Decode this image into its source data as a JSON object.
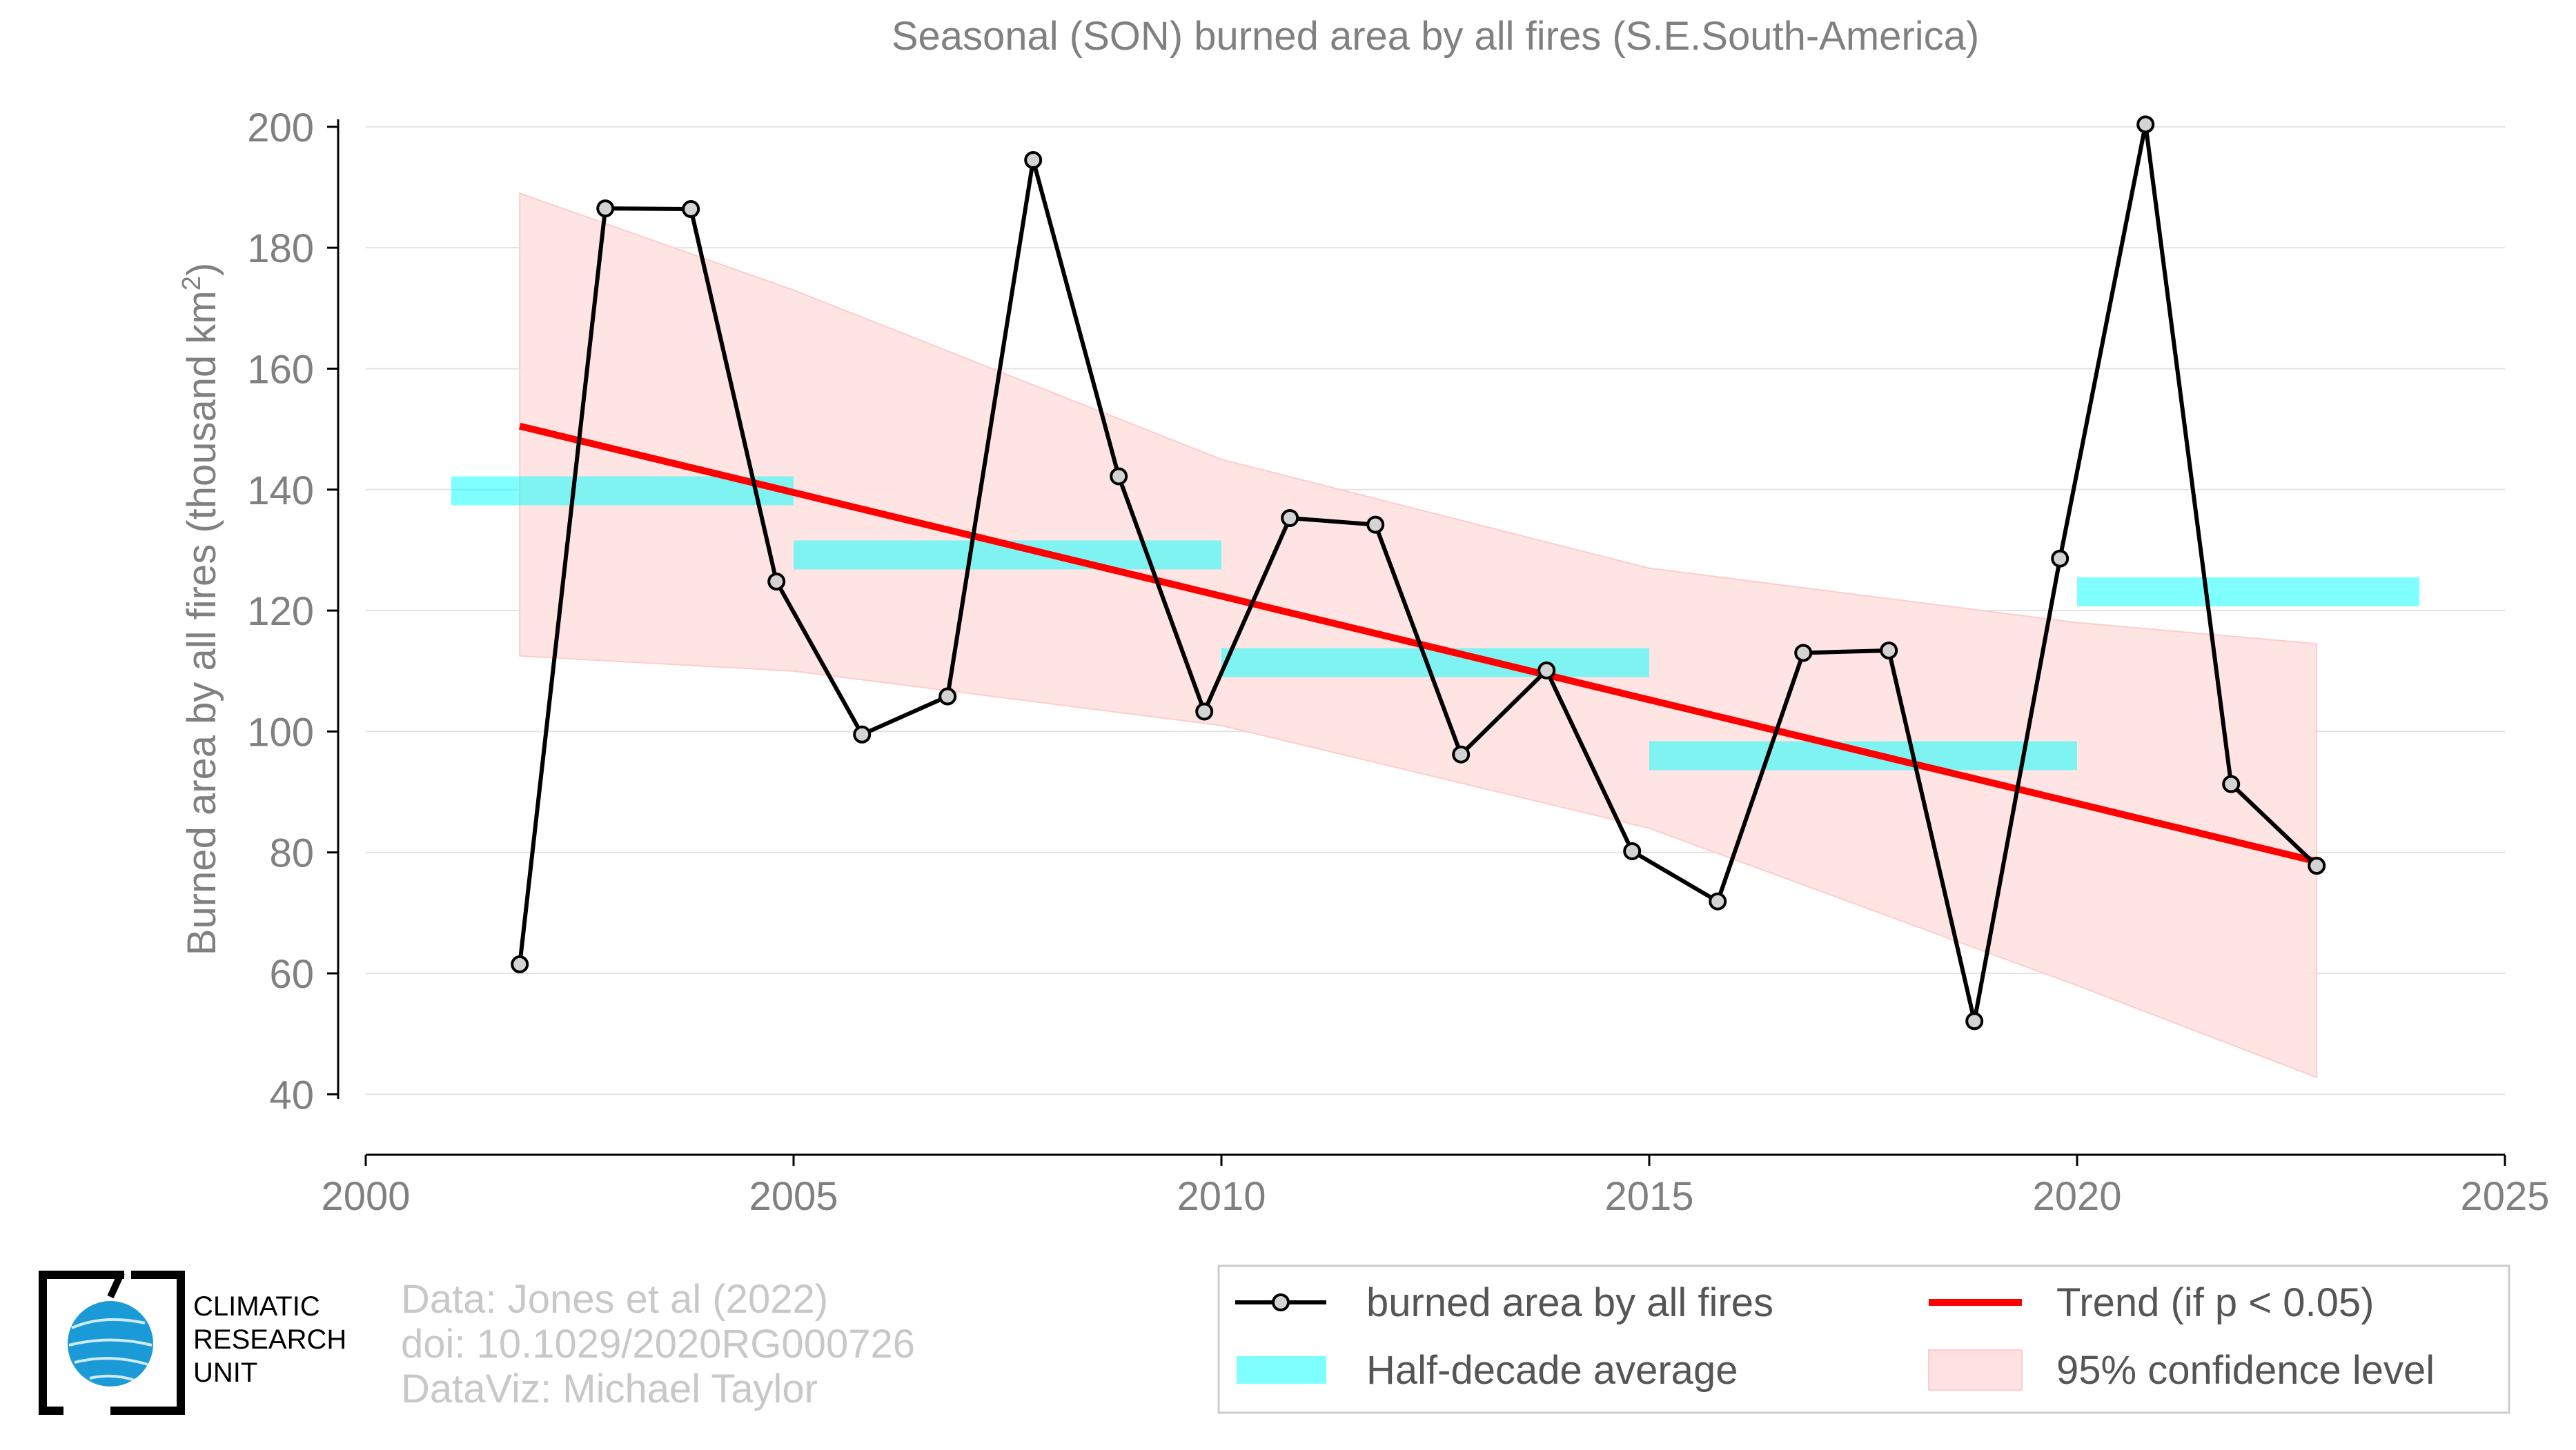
{
  "chart_data": {
    "type": "line",
    "title": "Seasonal (SON) burned area by all fires (S.E.South-America)",
    "ylabel": "Burned area by all fires (thousand km",
    "ylabel_sup": "2",
    "ylabel_tail": ")",
    "xlim": [
      2000,
      2025
    ],
    "ylim": [
      30,
      205
    ],
    "x_ticks": [
      2000,
      2005,
      2010,
      2015,
      2020,
      2025
    ],
    "y_ticks": [
      40,
      60,
      80,
      100,
      120,
      140,
      160,
      180,
      200
    ],
    "grid": "horizontal",
    "legend_position": "bottom-right",
    "series": [
      {
        "name": "burned area by all fires",
        "color": "#000000",
        "marker_fill": "#d3d3d3",
        "x": [
          2001.8,
          2002.8,
          2003.8,
          2004.8,
          2005.8,
          2006.8,
          2007.8,
          2008.8,
          2009.8,
          2010.8,
          2011.8,
          2012.8,
          2013.8,
          2014.8,
          2015.8,
          2016.8,
          2017.8,
          2018.8,
          2019.8,
          2020.8,
          2021.8,
          2022.8
        ],
        "values": [
          61.5,
          186.5,
          186.4,
          124.8,
          99.5,
          105.8,
          194.5,
          142.2,
          103.3,
          135.3,
          134.2,
          96.2,
          110.1,
          80.2,
          71.9,
          113.0,
          113.4,
          52.1,
          128.6,
          200.4,
          91.3,
          77.8
        ]
      },
      {
        "name": "Half-decade average",
        "color": "#00ffff",
        "segments": [
          {
            "x0": 2001,
            "x1": 2005,
            "value": 139.8
          },
          {
            "x0": 2005,
            "x1": 2010,
            "value": 129.2
          },
          {
            "x0": 2010,
            "x1": 2015,
            "value": 111.4
          },
          {
            "x0": 2015,
            "x1": 2020,
            "value": 96.0
          },
          {
            "x0": 2020,
            "x1": 2024,
            "value": 123.1
          }
        ]
      },
      {
        "name": "Trend (if p < 0.05)",
        "color": "#ff0000",
        "x": [
          2001.8,
          2022.8
        ],
        "values": [
          150.5,
          78.5
        ]
      },
      {
        "name": "95% confidence level",
        "color": "#ffe1e1",
        "x": [
          2001.8,
          2005,
          2010,
          2015,
          2020,
          2022.8
        ],
        "upper": [
          189.0,
          173.0,
          145.0,
          127.0,
          118.0,
          114.5
        ],
        "lower": [
          112.5,
          110.0,
          101.0,
          84.0,
          58.0,
          42.8
        ]
      }
    ],
    "legend": [
      {
        "label": "burned area by all fires",
        "kind": "line-marker",
        "color": "#000000"
      },
      {
        "label": "Trend (if p < 0.05)",
        "kind": "line",
        "color": "#ff0000"
      },
      {
        "label": "Half-decade average",
        "kind": "band",
        "color": "#00ffff"
      },
      {
        "label": "95% confidence level",
        "kind": "patch",
        "color": "#ffe1e1"
      }
    ]
  },
  "credits": {
    "line1": "Data: Jones et al (2022)",
    "line2": "doi: 10.1029/2020RG000726",
    "line3": "DataViz: Michael Taylor"
  },
  "logo": {
    "line1": "CLIMATIC",
    "line2": "RESEARCH",
    "line3": "UNIT"
  }
}
